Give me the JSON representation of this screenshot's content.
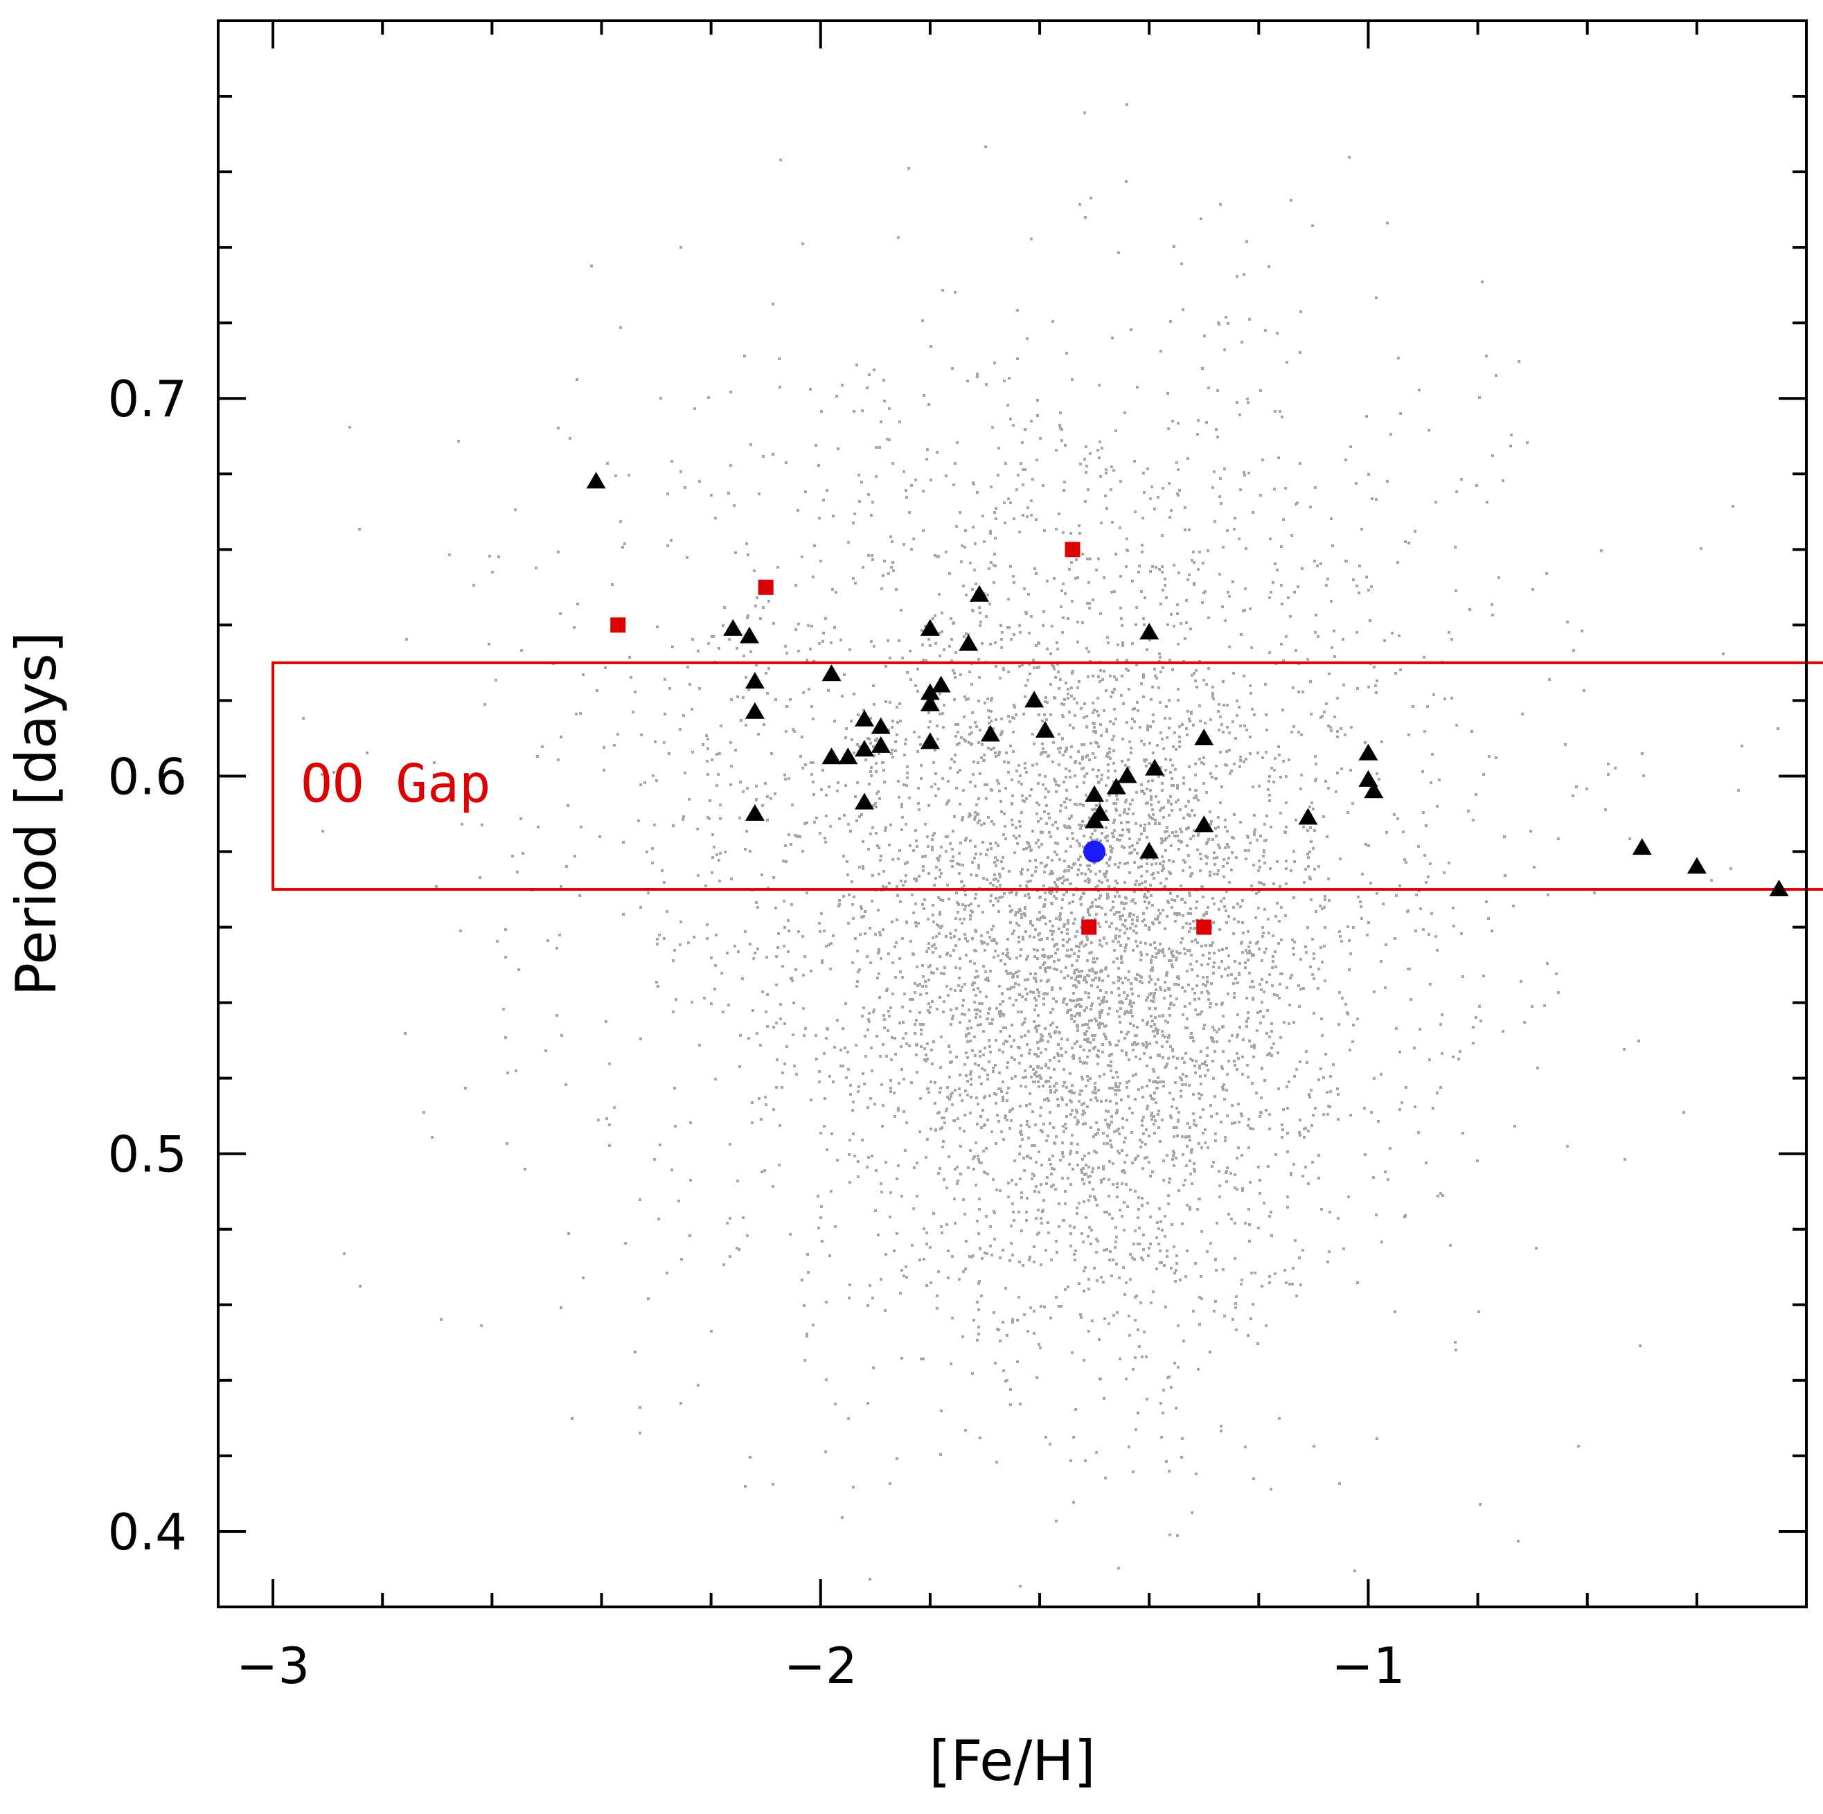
{
  "chart_data": {
    "type": "scatter",
    "title": "",
    "xlabel": "[Fe/H]",
    "ylabel": "Period [days]",
    "xlim": [
      -3.1,
      -0.2
    ],
    "ylim": [
      0.38,
      0.8
    ],
    "grid": false,
    "x_major_ticks": [
      -3,
      -2,
      -1
    ],
    "x_tick_labels": [
      "−3",
      "−2",
      "−1"
    ],
    "x_minor_step": 0.2,
    "y_major_ticks": [
      0.4,
      0.5,
      0.6,
      0.7
    ],
    "y_tick_labels": [
      "0.4",
      "0.5",
      "0.6",
      "0.7"
    ],
    "y_minor_step": 0.02,
    "colors": {
      "background_field": "#a6a6a6",
      "triangles": "#000000",
      "squares": "#dd0000",
      "circle": "#1a1aff",
      "gap_box": "#dd0000",
      "frame": "#000000"
    },
    "gap_region": {
      "label": "OO Gap",
      "x_range": [
        -3.0,
        -0.15
      ],
      "y_range": [
        0.57,
        0.63
      ]
    },
    "background_field": {
      "description": "dense cloud of field RR Lyrae",
      "center_x": -1.5,
      "center_y": 0.56,
      "n_points": 5500
    },
    "series": [
      {
        "name": "triangles",
        "marker": "triangle",
        "points": [
          [
            -2.41,
            0.678
          ],
          [
            -2.16,
            0.639
          ],
          [
            -2.13,
            0.637
          ],
          [
            -2.12,
            0.625
          ],
          [
            -2.12,
            0.617
          ],
          [
            -2.12,
            0.59
          ],
          [
            -1.98,
            0.627
          ],
          [
            -1.98,
            0.605
          ],
          [
            -1.95,
            0.605
          ],
          [
            -1.92,
            0.607
          ],
          [
            -1.92,
            0.615
          ],
          [
            -1.92,
            0.593
          ],
          [
            -1.89,
            0.613
          ],
          [
            -1.89,
            0.608
          ],
          [
            -1.8,
            0.639
          ],
          [
            -1.8,
            0.622
          ],
          [
            -1.8,
            0.619
          ],
          [
            -1.8,
            0.609
          ],
          [
            -1.78,
            0.624
          ],
          [
            -1.73,
            0.635
          ],
          [
            -1.71,
            0.648
          ],
          [
            -1.69,
            0.611
          ],
          [
            -1.61,
            0.62
          ],
          [
            -1.59,
            0.612
          ],
          [
            -1.5,
            0.595
          ],
          [
            -1.5,
            0.588
          ],
          [
            -1.49,
            0.59
          ],
          [
            -1.46,
            0.597
          ],
          [
            -1.44,
            0.6
          ],
          [
            -1.4,
            0.638
          ],
          [
            -1.4,
            0.58
          ],
          [
            -1.39,
            0.602
          ],
          [
            -1.3,
            0.61
          ],
          [
            -1.3,
            0.587
          ],
          [
            -1.11,
            0.589
          ],
          [
            -1.0,
            0.606
          ],
          [
            -1.0,
            0.599
          ],
          [
            -0.99,
            0.596
          ],
          [
            -0.5,
            0.581
          ],
          [
            -0.4,
            0.576
          ],
          [
            -0.25,
            0.57
          ]
        ]
      },
      {
        "name": "squares",
        "marker": "square",
        "points": [
          [
            -2.37,
            0.64
          ],
          [
            -2.1,
            0.65
          ],
          [
            -1.54,
            0.66
          ],
          [
            -1.51,
            0.56
          ],
          [
            -1.3,
            0.56
          ]
        ]
      },
      {
        "name": "circle",
        "marker": "circle",
        "points": [
          [
            -1.5,
            0.58
          ]
        ]
      }
    ]
  }
}
